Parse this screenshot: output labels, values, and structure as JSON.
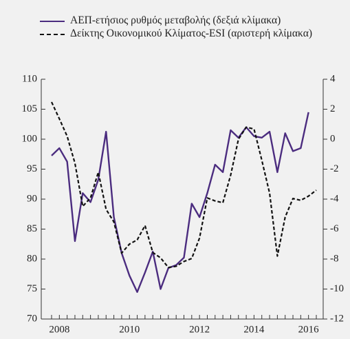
{
  "chart_data": {
    "type": "line",
    "categories": [
      null,
      "2008",
      null,
      null,
      null,
      null,
      null,
      null,
      null,
      null,
      "2010",
      null,
      null,
      null,
      null,
      null,
      null,
      null,
      null,
      "2012",
      null,
      null,
      null,
      null,
      null,
      null,
      "2014",
      null,
      null,
      null,
      null,
      null,
      null,
      "2016",
      null
    ],
    "series": [
      {
        "name": "ΑΕΠ-ετήσιος ρυθμός μεταβολής (δεξιά κλίμακα)",
        "color": "#4b2c7f",
        "axis": "y2",
        "dash": "solid",
        "values": [
          -1.1,
          -0.6,
          -1.5,
          -6.8,
          -3.6,
          -4.2,
          -2.7,
          0.5,
          -5.2,
          -7.6,
          -9.1,
          -10.2,
          -8.9,
          -7.5,
          -10,
          -8.6,
          -8.4,
          -7.9,
          -4.3,
          -5.2,
          -3.6,
          -1.7,
          -2.2,
          0.6,
          0.1,
          0.8,
          0.2,
          0.1,
          0.5,
          -2.2,
          0.4,
          -0.8,
          -0.6,
          1.8,
          null
        ]
      },
      {
        "name": "Δείκτης Οικονομικού Κλίματος-ESI (αριστερή κλίμακα)",
        "color": "#111111",
        "axis": "y",
        "dash": "dashed",
        "values": [
          106.2,
          103.4,
          100.5,
          96,
          88.8,
          90.2,
          94.5,
          88.3,
          86.2,
          81,
          82.5,
          83.2,
          85.6,
          81.1,
          80.2,
          78.6,
          78.8,
          79.6,
          80.1,
          83.5,
          90.2,
          89.7,
          89.4,
          94,
          100,
          102,
          101.7,
          96.5,
          91,
          80.5,
          87,
          90.1,
          89.8,
          90.5,
          91.5
        ]
      }
    ],
    "ylim": [
      70,
      110
    ],
    "yticks": [
      70,
      75,
      80,
      85,
      90,
      95,
      100,
      105,
      110
    ],
    "y2lim": [
      -12,
      4
    ],
    "y2ticks": [
      -12,
      -10,
      -8,
      -6,
      -4,
      -2,
      0,
      2,
      4
    ]
  }
}
